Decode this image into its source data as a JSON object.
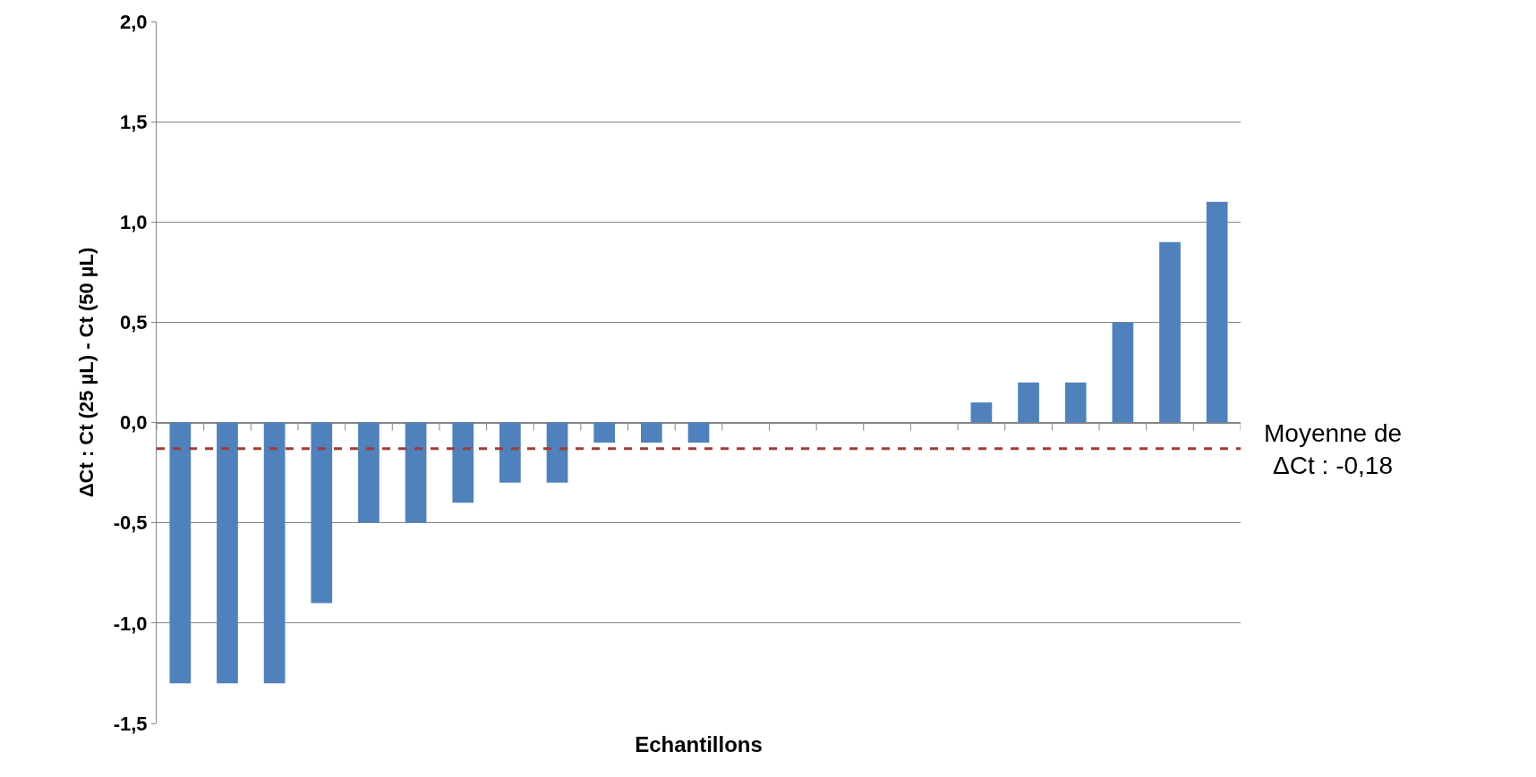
{
  "chart_data": {
    "type": "bar",
    "xlabel": "Echantillons",
    "ylabel": "ΔCt : Ct (25 µL) - Ct (50 µL)",
    "categories": [
      null,
      null,
      null,
      null,
      null,
      null,
      null,
      null,
      null,
      null,
      null,
      null,
      null,
      null,
      null,
      null,
      null,
      null,
      null,
      null,
      null,
      null,
      null
    ],
    "values": [
      -1.3,
      -1.3,
      -1.3,
      -0.9,
      -0.5,
      -0.5,
      -0.4,
      -0.3,
      -0.3,
      -0.1,
      -0.1,
      -0.1,
      0,
      0,
      0,
      0,
      0,
      0.1,
      0.2,
      0.2,
      0.5,
      0.9,
      1.1
    ],
    "color": "#4f81bd",
    "ylim": [
      -1.5,
      2.0
    ],
    "yticks": [
      {
        "value": -1.5,
        "label": "-1,5"
      },
      {
        "value": -1.0,
        "label": "-1,0"
      },
      {
        "value": -0.5,
        "label": "-0,5"
      },
      {
        "value": 0,
        "label": "0,0"
      },
      {
        "value": 0.5,
        "label": "0,5"
      },
      {
        "value": 1.0,
        "label": "1,0"
      },
      {
        "value": 1.5,
        "label": "1,5"
      },
      {
        "value": 2.0,
        "label": "2,0"
      }
    ],
    "ref_lines": [
      {
        "axis": "y",
        "value": -0.13,
        "color": "#a33a35",
        "line_style": "dashed"
      }
    ],
    "annotations": [
      "Moyenne de\nΔCt : -0,18"
    ],
    "grid": "y",
    "tick_labels": "y"
  }
}
